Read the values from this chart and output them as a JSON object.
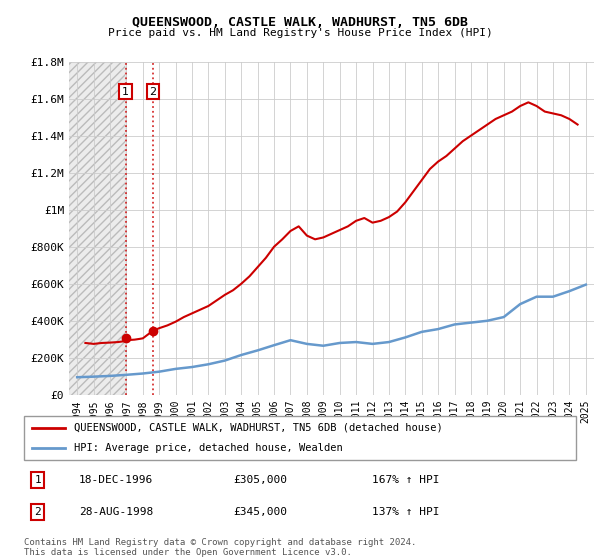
{
  "title": "QUEENSWOOD, CASTLE WALK, WADHURST, TN5 6DB",
  "subtitle": "Price paid vs. HM Land Registry's House Price Index (HPI)",
  "legend_line1": "QUEENSWOOD, CASTLE WALK, WADHURST, TN5 6DB (detached house)",
  "legend_line2": "HPI: Average price, detached house, Wealden",
  "footer": "Contains HM Land Registry data © Crown copyright and database right 2024.\nThis data is licensed under the Open Government Licence v3.0.",
  "transaction1": {
    "label": "1",
    "date": "18-DEC-1996",
    "price": 305000,
    "hpi_pct": "167%",
    "arrow": "↑"
  },
  "transaction2": {
    "label": "2",
    "date": "28-AUG-1998",
    "price": 345000,
    "hpi_pct": "137%",
    "arrow": "↑"
  },
  "red_color": "#cc0000",
  "blue_color": "#6699cc",
  "hpi_years": [
    1994,
    1995,
    1996,
    1997,
    1998,
    1999,
    2000,
    2001,
    2002,
    2003,
    2004,
    2005,
    2006,
    2007,
    2008,
    2009,
    2010,
    2011,
    2012,
    2013,
    2014,
    2015,
    2016,
    2017,
    2018,
    2019,
    2020,
    2021,
    2022,
    2023,
    2024,
    2025
  ],
  "hpi_values": [
    95000,
    98000,
    102000,
    108000,
    115000,
    125000,
    140000,
    150000,
    165000,
    185000,
    215000,
    240000,
    268000,
    295000,
    275000,
    265000,
    280000,
    285000,
    275000,
    285000,
    310000,
    340000,
    355000,
    380000,
    390000,
    400000,
    420000,
    490000,
    530000,
    530000,
    560000,
    595000
  ],
  "red_years_approx": [
    1994.5,
    1995.0,
    1995.5,
    1996.0,
    1996.5,
    1996.9,
    1997.0,
    1997.5,
    1997.8,
    1998.0,
    1998.6,
    1999.0,
    1999.5,
    2000.0,
    2000.5,
    2001.0,
    2001.5,
    2002.0,
    2002.5,
    2003.0,
    2003.5,
    2004.0,
    2004.5,
    2005.0,
    2005.5,
    2006.0,
    2006.5,
    2007.0,
    2007.5,
    2008.0,
    2008.5,
    2009.0,
    2009.5,
    2010.0,
    2010.5,
    2011.0,
    2011.5,
    2012.0,
    2012.5,
    2013.0,
    2013.5,
    2014.0,
    2014.5,
    2015.0,
    2015.5,
    2016.0,
    2016.5,
    2017.0,
    2017.5,
    2018.0,
    2018.5,
    2019.0,
    2019.5,
    2020.0,
    2020.5,
    2021.0,
    2021.5,
    2022.0,
    2022.5,
    2023.0,
    2023.5,
    2024.0,
    2024.5
  ],
  "red_values_approx": [
    280000,
    275000,
    280000,
    282000,
    285000,
    290000,
    295000,
    298000,
    302000,
    305000,
    345000,
    360000,
    375000,
    395000,
    420000,
    440000,
    460000,
    480000,
    510000,
    540000,
    565000,
    600000,
    640000,
    690000,
    740000,
    800000,
    840000,
    885000,
    910000,
    860000,
    840000,
    850000,
    870000,
    890000,
    910000,
    940000,
    955000,
    930000,
    940000,
    960000,
    990000,
    1040000,
    1100000,
    1160000,
    1220000,
    1260000,
    1290000,
    1330000,
    1370000,
    1400000,
    1430000,
    1460000,
    1490000,
    1510000,
    1530000,
    1560000,
    1580000,
    1560000,
    1530000,
    1520000,
    1510000,
    1490000,
    1460000
  ],
  "ylim": [
    0,
    1800000
  ],
  "yticks": [
    0,
    200000,
    400000,
    600000,
    800000,
    1000000,
    1200000,
    1400000,
    1600000,
    1800000
  ],
  "ytick_labels": [
    "£0",
    "£200K",
    "£400K",
    "£600K",
    "£800K",
    "£1M",
    "£1.2M",
    "£1.4M",
    "£1.6M",
    "£1.8M"
  ],
  "xtick_years": [
    1994,
    1995,
    1996,
    1997,
    1998,
    1999,
    2000,
    2001,
    2002,
    2003,
    2004,
    2005,
    2006,
    2007,
    2008,
    2009,
    2010,
    2011,
    2012,
    2013,
    2014,
    2015,
    2016,
    2017,
    2018,
    2019,
    2020,
    2021,
    2022,
    2023,
    2024,
    2025
  ],
  "bg_hatch_end": 1996.9,
  "marker1_x": 1996.95,
  "marker1_y": 305000,
  "marker2_x": 1998.62,
  "marker2_y": 345000,
  "xlim_min": 1993.5,
  "xlim_max": 2025.5
}
